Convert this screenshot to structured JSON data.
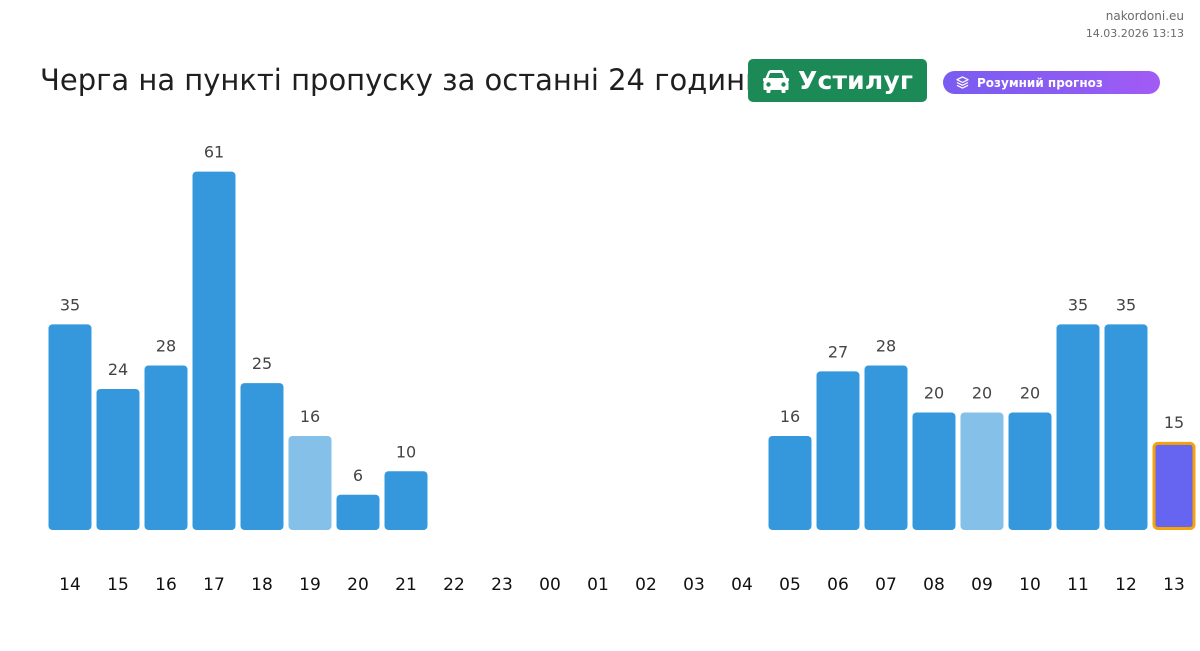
{
  "brand": {
    "site": "nakordoni.eu",
    "timestamp": "14.03.2026 13:13"
  },
  "header": {
    "title": "Черга на пункті пропуску за останні 24 години",
    "crossing_name": "Устилуг",
    "crossing_icon": "car-icon",
    "forecast_label": "Розумний прогноз",
    "forecast_icon": "layers-icon"
  },
  "colors": {
    "bar": "#3598dc",
    "bar_light": "#85c0e8",
    "bar_current": "#6665f1",
    "bar_current_border": "#f5a30b",
    "crossing_badge": "#1b8a56"
  },
  "chart_data": {
    "type": "bar",
    "title": "",
    "xlabel": "",
    "ylabel": "",
    "ylim": [
      0,
      65
    ],
    "grid": false,
    "legend": "none",
    "categories": [
      "14",
      "15",
      "16",
      "17",
      "18",
      "19",
      "20",
      "21",
      "22",
      "23",
      "00",
      "01",
      "02",
      "03",
      "04",
      "05",
      "06",
      "07",
      "08",
      "09",
      "10",
      "11",
      "12",
      "13"
    ],
    "values": [
      35,
      24,
      28,
      61,
      25,
      16,
      6,
      10,
      null,
      null,
      null,
      null,
      null,
      null,
      null,
      16,
      27,
      28,
      20,
      20,
      20,
      35,
      35,
      15
    ],
    "highlight_light": [
      "19",
      "09"
    ],
    "current": "13"
  }
}
